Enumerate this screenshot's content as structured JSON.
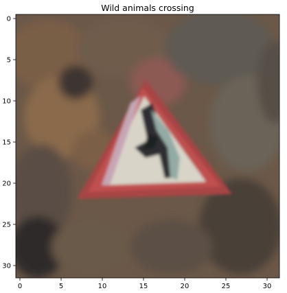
{
  "title": "Wild animals crossing",
  "x_ticks": [
    "0",
    "5",
    "10",
    "15",
    "20",
    "25",
    "30"
  ],
  "y_ticks": [
    "0",
    "5",
    "10",
    "15",
    "20",
    "25",
    "30"
  ],
  "image": {
    "rows": 32,
    "cols": 32,
    "subject": "triangular red-bordered warning road sign with white interior and dark animal silhouette",
    "colors": {
      "background_brown": "#6e5a4a",
      "background_dark": "#3a3430",
      "sign_red": "#b04545",
      "sign_white": "#d6d3c6",
      "sign_pink": "#c9a3b0",
      "animal_dark": "#2b2b2b",
      "animal_teal": "#8aa6a0"
    }
  }
}
